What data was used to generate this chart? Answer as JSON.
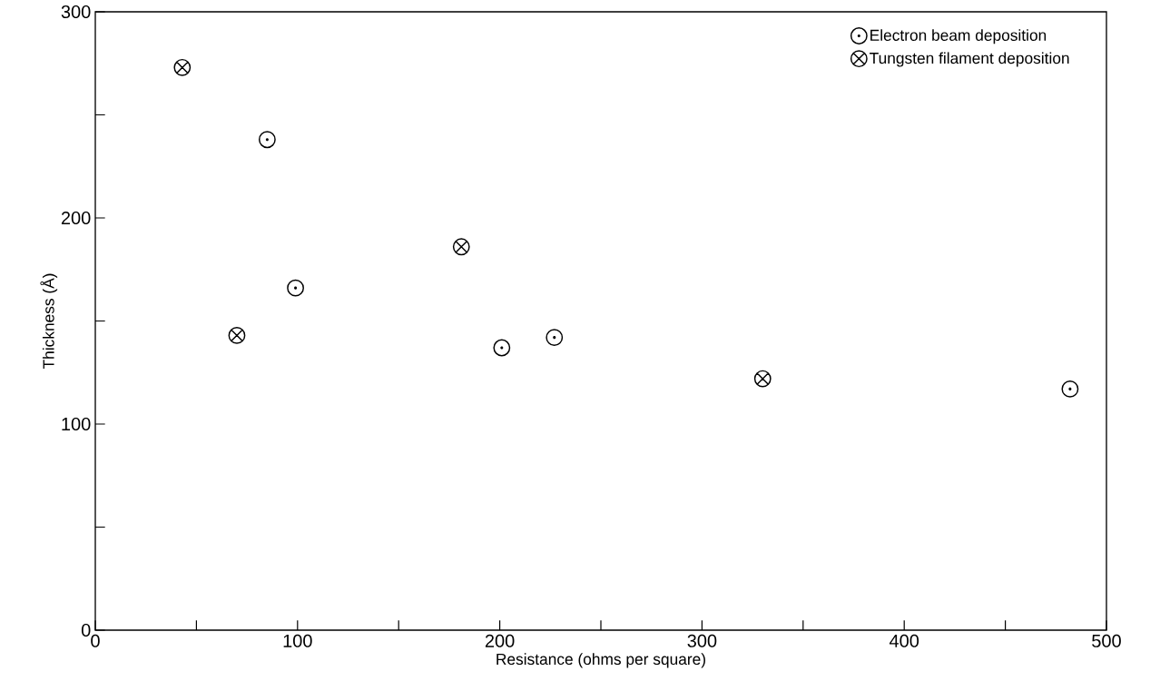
{
  "chart_data": {
    "type": "scatter",
    "xlabel": "Resistance (ohms per square)",
    "ylabel": "Thickness (Å)",
    "xlim": [
      0,
      500
    ],
    "ylim": [
      0,
      300
    ],
    "xticks": [
      0,
      {
        "value": 50,
        "label": null
      },
      100,
      {
        "value": 150,
        "label": null
      },
      200,
      {
        "value": 250,
        "label": null
      },
      300,
      {
        "value": 350,
        "label": null
      },
      400,
      {
        "value": 450,
        "label": null
      },
      500
    ],
    "yticks": [
      0,
      {
        "value": 50,
        "label": null
      },
      100,
      {
        "value": 150,
        "label": null
      },
      200,
      {
        "value": 250,
        "label": null
      },
      300
    ],
    "grid": false,
    "legend": "top right",
    "series": [
      {
        "name": "Electron beam deposition",
        "color": "#000000",
        "marker": "circle",
        "x": [
          85,
          99,
          201,
          227,
          482
        ],
        "values": [
          238,
          166,
          137,
          142,
          117
        ]
      },
      {
        "name": "Tungsten filament deposition",
        "color": "#000000",
        "marker": "cross",
        "x": [
          43,
          70,
          181,
          330
        ],
        "values": [
          273,
          143,
          186,
          122
        ]
      }
    ]
  }
}
